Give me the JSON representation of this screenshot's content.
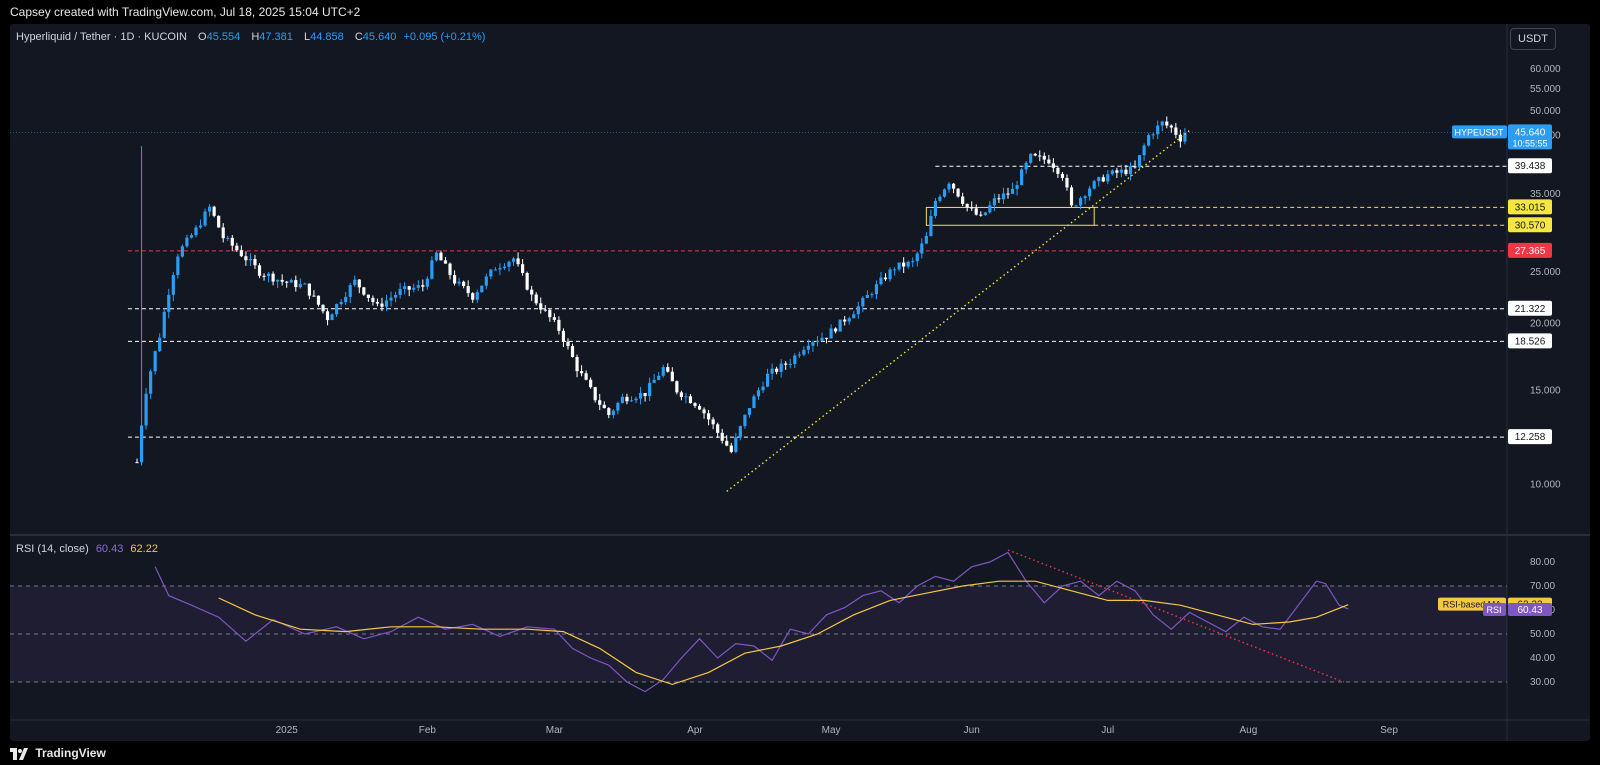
{
  "header": {
    "caption": "Capsey created with TradingView.com, Jul 18, 2025 15:04 UTC+2"
  },
  "symbol": {
    "title": "Hyperliquid / Tether · 1D · KUCOIN",
    "open_label": "O",
    "open": "45.554",
    "high_label": "H",
    "high": "47.381",
    "low_label": "L",
    "low": "44.858",
    "close_label": "C",
    "close": "45.640",
    "change": "+0.095 (+0.21%)"
  },
  "currency_button": "USDT",
  "rsi_legend": {
    "title": "RSI (14, close)",
    "rsi": "60.43",
    "ma": "62.22"
  },
  "footer": {
    "brand": "TradingView"
  },
  "colors": {
    "up": "#2a9df4",
    "down": "#ffffff",
    "background": "#131722",
    "yellow": "#f5e642",
    "red": "#f23645",
    "rsi": "#7e57c2",
    "rsi_ma": "#f5c842"
  },
  "chart_data": [
    {
      "type": "candlestick",
      "title": "Hyperliquid / Tether · 1D · KUCOIN",
      "ylim": [
        8,
        64
      ],
      "y_scale": "log",
      "x_ticks": [
        "2025",
        "Feb",
        "Mar",
        "Apr",
        "May",
        "Jun",
        "Jul",
        "Aug",
        "Sep"
      ],
      "y_ticks": [
        10,
        15,
        20,
        25,
        35,
        45,
        50,
        55,
        60
      ],
      "ohlc_path": [
        [
          "2024-11-29",
          11.0
        ],
        [
          "2024-12-01",
          15.0
        ],
        [
          "2024-12-04",
          19.0
        ],
        [
          "2024-12-08",
          27.0
        ],
        [
          "2024-12-12",
          30.0
        ],
        [
          "2024-12-15",
          33.0
        ],
        [
          "2024-12-18",
          29.0
        ],
        [
          "2024-12-22",
          27.0
        ],
        [
          "2024-12-26",
          25.0
        ],
        [
          "2024-12-31",
          24.0
        ],
        [
          "2025-01-05",
          23.5
        ],
        [
          "2025-01-10",
          20.5
        ],
        [
          "2025-01-16",
          24.0
        ],
        [
          "2025-01-21",
          21.5
        ],
        [
          "2025-01-26",
          23.0
        ],
        [
          "2025-01-31",
          23.5
        ],
        [
          "2025-02-03",
          27.0
        ],
        [
          "2025-02-07",
          24.0
        ],
        [
          "2025-02-11",
          22.5
        ],
        [
          "2025-02-16",
          25.5
        ],
        [
          "2025-02-20",
          26.5
        ],
        [
          "2025-02-24",
          22.5
        ],
        [
          "2025-02-27",
          21.0
        ],
        [
          "2025-03-02",
          19.5
        ],
        [
          "2025-03-06",
          16.5
        ],
        [
          "2025-03-10",
          14.5
        ],
        [
          "2025-03-13",
          13.5
        ],
        [
          "2025-03-16",
          14.5
        ],
        [
          "2025-03-21",
          14.8
        ],
        [
          "2025-03-25",
          16.5
        ],
        [
          "2025-03-28",
          15.0
        ],
        [
          "2025-04-02",
          14.0
        ],
        [
          "2025-04-06",
          12.5
        ],
        [
          "2025-04-09",
          11.5
        ],
        [
          "2025-04-13",
          14.0
        ],
        [
          "2025-04-17",
          16.0
        ],
        [
          "2025-04-22",
          17.0
        ],
        [
          "2025-04-26",
          18.5
        ],
        [
          "2025-04-30",
          19.0
        ],
        [
          "2025-05-03",
          20.0
        ],
        [
          "2025-05-07",
          21.5
        ],
        [
          "2025-05-11",
          23.5
        ],
        [
          "2025-05-15",
          25.5
        ],
        [
          "2025-05-19",
          26.0
        ],
        [
          "2025-05-22",
          29.0
        ],
        [
          "2025-05-24",
          34.0
        ],
        [
          "2025-05-27",
          37.0
        ],
        [
          "2025-05-31",
          33.0
        ],
        [
          "2025-06-03",
          31.5
        ],
        [
          "2025-06-06",
          34.0
        ],
        [
          "2025-06-10",
          35.5
        ],
        [
          "2025-06-14",
          41.0
        ],
        [
          "2025-06-18",
          40.5
        ],
        [
          "2025-06-21",
          38.0
        ],
        [
          "2025-06-23",
          33.0
        ],
        [
          "2025-06-27",
          36.0
        ],
        [
          "2025-07-01",
          38.0
        ],
        [
          "2025-07-04",
          38.5
        ],
        [
          "2025-07-07",
          39.0
        ],
        [
          "2025-07-10",
          45.0
        ],
        [
          "2025-07-13",
          47.5
        ],
        [
          "2025-07-15",
          46.5
        ],
        [
          "2025-07-17",
          44.5
        ],
        [
          "2025-07-18",
          45.64
        ]
      ],
      "levels": [
        {
          "value": 39.438,
          "label": "39.438",
          "style": "white-dashed"
        },
        {
          "value": 33.015,
          "label": "33.015",
          "style": "yellow-dashed"
        },
        {
          "value": 30.57,
          "label": "30.570",
          "style": "yellow-dashed"
        },
        {
          "value": 27.365,
          "label": "27.365",
          "style": "red-dashed"
        },
        {
          "value": 21.322,
          "label": "21.322",
          "style": "white-dashed"
        },
        {
          "value": 18.526,
          "label": "18.526",
          "style": "white-dashed"
        },
        {
          "value": 12.258,
          "label": "12.258",
          "style": "white-dashed"
        }
      ],
      "last_price": {
        "symbol": "HYPEUSDT",
        "value": "45.640",
        "countdown": "10:55:55"
      },
      "annotations": [
        {
          "type": "dotted-trendline",
          "color": "yellow",
          "from": [
            "2025-04-08",
            9.7
          ],
          "to": [
            "2025-07-19",
            46.0
          ]
        },
        {
          "type": "box",
          "color": "yellow",
          "from": [
            "2025-05-22",
            33.015
          ],
          "to": [
            "2025-06-28",
            30.57
          ]
        }
      ]
    },
    {
      "type": "line",
      "title": "RSI (14, close)",
      "ylim": [
        20,
        90
      ],
      "y_ticks": [
        30,
        40,
        50,
        60,
        70,
        80
      ],
      "bands": [
        30,
        50,
        70
      ],
      "series": [
        {
          "name": "RSI",
          "color": "#7e57c2",
          "last": "60.43",
          "values": [
            [
              0,
              78
            ],
            [
              3,
              66
            ],
            [
              8,
              62
            ],
            [
              14,
              57
            ],
            [
              20,
              47
            ],
            [
              26,
              56
            ],
            [
              33,
              50
            ],
            [
              40,
              53
            ],
            [
              46,
              48
            ],
            [
              52,
              51
            ],
            [
              58,
              57
            ],
            [
              64,
              52
            ],
            [
              70,
              54
            ],
            [
              76,
              49
            ],
            [
              82,
              53
            ],
            [
              88,
              52
            ],
            [
              92,
              44
            ],
            [
              96,
              40
            ],
            [
              100,
              37
            ],
            [
              104,
              30
            ],
            [
              108,
              26
            ],
            [
              112,
              31
            ],
            [
              116,
              40
            ],
            [
              120,
              48
            ],
            [
              124,
              40
            ],
            [
              128,
              46
            ],
            [
              132,
              45
            ],
            [
              136,
              39
            ],
            [
              140,
              52
            ],
            [
              144,
              50
            ],
            [
              148,
              58
            ],
            [
              152,
              61
            ],
            [
              156,
              66
            ],
            [
              160,
              68
            ],
            [
              164,
              63
            ],
            [
              168,
              70
            ],
            [
              172,
              74
            ],
            [
              176,
              72
            ],
            [
              180,
              78
            ],
            [
              184,
              80
            ],
            [
              188,
              84
            ],
            [
              192,
              72
            ],
            [
              196,
              63
            ],
            [
              200,
              70
            ],
            [
              204,
              72
            ],
            [
              208,
              66
            ],
            [
              212,
              72
            ],
            [
              216,
              68
            ],
            [
              220,
              58
            ],
            [
              224,
              52
            ],
            [
              228,
              59
            ],
            [
              232,
              55
            ],
            [
              236,
              51
            ],
            [
              240,
              57
            ],
            [
              244,
              53
            ],
            [
              248,
              52
            ],
            [
              252,
              62
            ],
            [
              256,
              72
            ],
            [
              258,
              71
            ],
            [
              261,
              62
            ],
            [
              263,
              60.43
            ]
          ]
        },
        {
          "name": "RSI-based MA",
          "color": "#f5c842",
          "last": "62.22",
          "values": [
            [
              14,
              65
            ],
            [
              22,
              58
            ],
            [
              32,
              52
            ],
            [
              42,
              51
            ],
            [
              52,
              53
            ],
            [
              62,
              53
            ],
            [
              72,
              52
            ],
            [
              82,
              52
            ],
            [
              90,
              51
            ],
            [
              98,
              44
            ],
            [
              106,
              34
            ],
            [
              114,
              29
            ],
            [
              122,
              34
            ],
            [
              130,
              42
            ],
            [
              138,
              45
            ],
            [
              146,
              50
            ],
            [
              154,
              58
            ],
            [
              162,
              64
            ],
            [
              170,
              67
            ],
            [
              178,
              70
            ],
            [
              186,
              72
            ],
            [
              194,
              72
            ],
            [
              202,
              68
            ],
            [
              210,
              64
            ],
            [
              218,
              64
            ],
            [
              226,
              62
            ],
            [
              234,
              58
            ],
            [
              242,
              54
            ],
            [
              250,
              55
            ],
            [
              256,
              57
            ],
            [
              263,
              62.22
            ]
          ]
        }
      ],
      "annotations": [
        {
          "type": "dotted-trendline",
          "color": "red",
          "from": [
            188,
            85
          ],
          "to": [
            262,
            30
          ]
        }
      ]
    }
  ]
}
